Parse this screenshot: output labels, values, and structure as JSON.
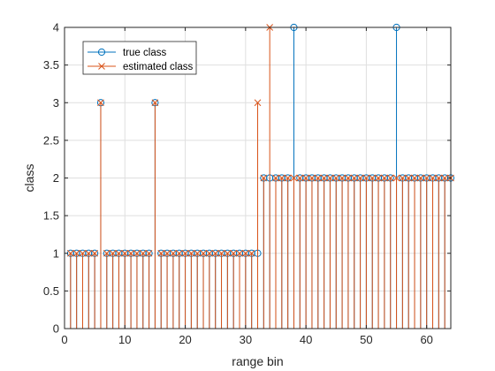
{
  "chart_data": {
    "type": "stem",
    "xlabel": "range bin",
    "ylabel": "class",
    "xlim": [
      0,
      64
    ],
    "ylim": [
      0,
      4
    ],
    "xticks": [
      0,
      10,
      20,
      30,
      40,
      50,
      60
    ],
    "yticks": [
      0,
      0.5,
      1,
      1.5,
      2,
      2.5,
      3,
      3.5,
      4
    ],
    "xtick_labels": [
      "0",
      "10",
      "20",
      "30",
      "40",
      "50",
      "60"
    ],
    "ytick_labels": [
      "0",
      "0.5",
      "1",
      "1.5",
      "2",
      "2.5",
      "3",
      "3.5",
      "4"
    ],
    "grid": true,
    "legend_position": "upper-left",
    "x": [
      1,
      2,
      3,
      4,
      5,
      6,
      7,
      8,
      9,
      10,
      11,
      12,
      13,
      14,
      15,
      16,
      17,
      18,
      19,
      20,
      21,
      22,
      23,
      24,
      25,
      26,
      27,
      28,
      29,
      30,
      31,
      32,
      33,
      34,
      35,
      36,
      37,
      38,
      39,
      40,
      41,
      42,
      43,
      44,
      45,
      46,
      47,
      48,
      49,
      50,
      51,
      52,
      53,
      54,
      55,
      56,
      57,
      58,
      59,
      60,
      61,
      62,
      63,
      64
    ],
    "series": [
      {
        "name": "true class",
        "marker": "circle",
        "color": "#0072BD",
        "values": [
          1,
          1,
          1,
          1,
          1,
          3,
          1,
          1,
          1,
          1,
          1,
          1,
          1,
          1,
          3,
          1,
          1,
          1,
          1,
          1,
          1,
          1,
          1,
          1,
          1,
          1,
          1,
          1,
          1,
          1,
          1,
          1,
          2,
          2,
          2,
          2,
          2,
          4,
          2,
          2,
          2,
          2,
          2,
          2,
          2,
          2,
          2,
          2,
          2,
          2,
          2,
          2,
          2,
          2,
          4,
          2,
          2,
          2,
          2,
          2,
          2,
          2,
          2,
          2
        ]
      },
      {
        "name": "estimated class",
        "marker": "x",
        "color": "#D95319",
        "values": [
          1,
          1,
          1,
          1,
          1,
          3,
          1,
          1,
          1,
          1,
          1,
          1,
          1,
          1,
          3,
          1,
          1,
          1,
          1,
          1,
          1,
          1,
          1,
          1,
          1,
          1,
          1,
          1,
          1,
          1,
          1,
          3,
          2,
          4,
          2,
          2,
          2,
          2,
          2,
          2,
          2,
          2,
          2,
          2,
          2,
          2,
          2,
          2,
          2,
          2,
          2,
          2,
          2,
          2,
          2,
          2,
          2,
          2,
          2,
          2,
          2,
          2,
          2,
          2
        ]
      }
    ]
  }
}
